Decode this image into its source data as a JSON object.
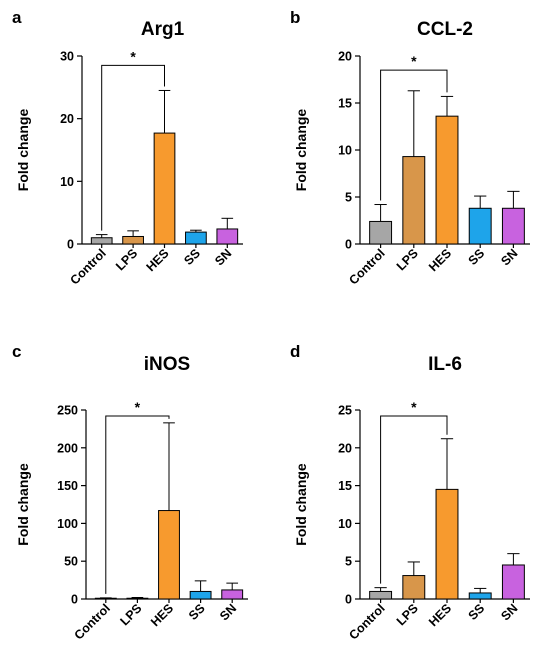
{
  "chart_data": [
    {
      "type": "bar",
      "panel_label": "a",
      "title": "Arg1",
      "ylabel": "Fold change",
      "xlabel": "",
      "categories": [
        "Control",
        "LPS",
        "HES",
        "SS",
        "SN"
      ],
      "values": [
        1.0,
        1.2,
        17.7,
        1.9,
        2.4
      ],
      "error_upper": [
        1.5,
        2.1,
        24.5,
        2.2,
        4.1
      ],
      "ylim": [
        0,
        30
      ],
      "yticks": [
        0,
        10,
        20,
        30
      ],
      "colors": [
        "#a6a6a6",
        "#d8964a",
        "#f79a2e",
        "#1ea4ea",
        "#c862df"
      ],
      "significance": {
        "from": "Control",
        "to": "HES",
        "label": "*",
        "y": 28.5
      }
    },
    {
      "type": "bar",
      "panel_label": "b",
      "title": "CCL-2",
      "ylabel": "Fold change",
      "xlabel": "",
      "categories": [
        "Control",
        "LPS",
        "HES",
        "SS",
        "SN"
      ],
      "values": [
        2.4,
        9.3,
        13.6,
        3.8,
        3.8
      ],
      "error_upper": [
        4.2,
        16.3,
        15.7,
        5.1,
        5.6
      ],
      "ylim": [
        0,
        20
      ],
      "yticks": [
        0,
        5,
        10,
        15,
        20
      ],
      "colors": [
        "#a6a6a6",
        "#d8964a",
        "#f79a2e",
        "#1ea4ea",
        "#c862df"
      ],
      "significance": {
        "from": "Control",
        "to": "HES",
        "label": "*",
        "y": 18.5
      }
    },
    {
      "type": "bar",
      "panel_label": "c",
      "title": "iNOS",
      "ylabel": "Fold change",
      "xlabel": "",
      "categories": [
        "Control",
        "LPS",
        "HES",
        "SS",
        "SN"
      ],
      "values": [
        1.0,
        1.0,
        117,
        10,
        12
      ],
      "error_upper": [
        1.5,
        2.0,
        233,
        24,
        21
      ],
      "ylim": [
        0,
        250
      ],
      "yticks": [
        0,
        50,
        100,
        150,
        200,
        250
      ],
      "colors": [
        "#a6a6a6",
        "#d8964a",
        "#f79a2e",
        "#1ea4ea",
        "#c862df"
      ],
      "significance": {
        "from": "Control",
        "to": "HES",
        "label": "*",
        "y": 242
      }
    },
    {
      "type": "bar",
      "panel_label": "d",
      "title": "IL-6",
      "ylabel": "Fold change",
      "xlabel": "",
      "categories": [
        "Control",
        "LPS",
        "HES",
        "SS",
        "SN"
      ],
      "values": [
        1.0,
        3.1,
        14.5,
        0.8,
        4.5
      ],
      "error_upper": [
        1.5,
        4.9,
        21.2,
        1.4,
        6.0
      ],
      "ylim": [
        0,
        25
      ],
      "yticks": [
        0,
        5,
        10,
        15,
        20,
        25
      ],
      "colors": [
        "#a6a6a6",
        "#d8964a",
        "#f79a2e",
        "#1ea4ea",
        "#c862df"
      ],
      "significance": {
        "from": "Control",
        "to": "HES",
        "label": "*",
        "y": 24.2
      }
    }
  ]
}
